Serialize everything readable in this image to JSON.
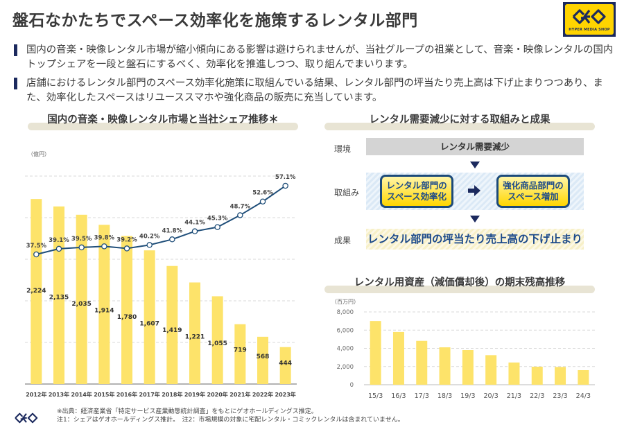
{
  "title": "盤石なかたちでスペース効率化を施策するレンタル部門",
  "logo": {
    "subtitle": "HYPER MEDIA SHOP",
    "icon": "geo-logo-icon"
  },
  "bullets": [
    "国内の音楽・映像レンタル市場が縮小傾向にある影響は避けられませんが、当社グループの祖業として、音楽・映像レンタルの国内トップシェアを一段と盤石にするべく、効率化を推進しつつ、取り組んでまいります。",
    "店舗におけるレンタル部門のスペース効率化施策に取組んでいる結果、レンタル部門の坪当たり売上高は下げ止まりつつあり、また、効率化したスペースはリユーススマホや強化商品の販売に充当しています。"
  ],
  "flow": {
    "title": "レンタル需要減少に対する取組みと成果",
    "env_label": "環境",
    "env_text": "レンタル需要減少",
    "action_label": "取組み",
    "action_left_line1": "レンタル部門の",
    "action_left_line2": "スペース効率化",
    "action_right_line1": "強化商品部門の",
    "action_right_line2": "スペース増加",
    "result_label": "成果",
    "result_text": "レンタル部門の坪当たり売上高の下げ止まり"
  },
  "footnote": {
    "line1": "※出典：経済産業省「特定サービス産業動態統計調査」をもとにゲオホールディングス推定。",
    "line2": "注1：シェアはゲオホールディングス推計。　注2：市場規模の対象に宅配レンタル・コミックレンタルは含まれていません。"
  },
  "colors": {
    "bar": "#fde36a",
    "line": "#1f4e79",
    "navy": "#1c2a5e"
  },
  "chart_data": [
    {
      "type": "bar",
      "title": "国内の音楽・映像レンタル市場と当社シェア推移＊",
      "ylabel": "（億円）",
      "xlabel": "",
      "categories": [
        "2012年",
        "2013年",
        "2014年",
        "2015年",
        "2016年",
        "2017年",
        "2018年",
        "2019年",
        "2020年",
        "2021年",
        "2022年",
        "2023年"
      ],
      "series": [
        {
          "name": "市場規模",
          "type": "bar",
          "values": [
            2224,
            2135,
            2035,
            1914,
            1780,
            1607,
            1419,
            1221,
            1055,
            719,
            568,
            444
          ],
          "labels": [
            "2,224",
            "2,135",
            "2,035",
            "1,914",
            "1,780",
            "1,607",
            "1,419",
            "1,221",
            "1,055",
            "719",
            "568",
            "444"
          ]
        },
        {
          "name": "当社シェア",
          "type": "line",
          "values": [
            37.5,
            39.1,
            39.5,
            39.8,
            39.2,
            40.2,
            41.8,
            44.1,
            45.3,
            48.7,
            52.6,
            57.1
          ],
          "labels": [
            "37.5%",
            "39.1%",
            "39.5%",
            "39.8%",
            "39.2%",
            "40.2%",
            "41.8%",
            "44.1%",
            "45.3%",
            "48.7%",
            "52.6%",
            "57.1%"
          ]
        }
      ],
      "ylim": [
        0,
        2500
      ],
      "gridlines": [
        500,
        1000,
        1500,
        2000,
        2500
      ],
      "grid": true,
      "legend": "none"
    },
    {
      "type": "bar",
      "title": "レンタル用資産（減価償却後）の期末残高推移",
      "ylabel": "（百万円）",
      "xlabel": "",
      "categories": [
        "15/3",
        "16/3",
        "17/3",
        "18/3",
        "19/3",
        "20/3",
        "21/3",
        "22/3",
        "23/3",
        "24/3"
      ],
      "values": [
        7000,
        5800,
        4820,
        4110,
        3810,
        3250,
        2440,
        1980,
        1950,
        1600
      ],
      "yticks": [
        "0",
        "2,000",
        "4,000",
        "6,000",
        "8,000"
      ],
      "ytick_values": [
        0,
        2000,
        4000,
        6000,
        8000
      ],
      "ylim": [
        0,
        8000
      ],
      "grid": true,
      "legend": "none"
    }
  ]
}
